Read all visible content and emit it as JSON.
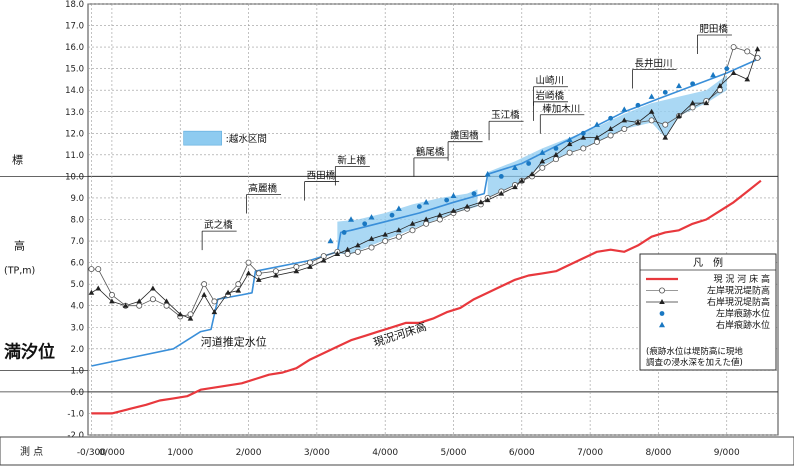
{
  "chart_data": {
    "type": "line",
    "ylim": [
      -2.0,
      18.0
    ],
    "yticks": [
      "18.0",
      "17.0",
      "16.0",
      "15.0",
      "14.0",
      "13.0",
      "12.0",
      "11.0",
      "10.0",
      "9.0",
      "8.0",
      "7.0",
      "6.0",
      "5.0",
      "4.0",
      "3.0",
      "2.0",
      "1.0",
      "0.0",
      "-1.0",
      "-2.0"
    ],
    "ylabel_parts": [
      "標",
      "高",
      "(TP,m)"
    ],
    "mean_tide_label": "満汐位",
    "mean_tide_level": 1.0,
    "xlim": [
      -0.35,
      9.75
    ],
    "xticks": [
      {
        "x": -0.3,
        "label": "-0/300"
      },
      {
        "x": 0.0,
        "label": "0/000"
      },
      {
        "x": 1.0,
        "label": "1/000"
      },
      {
        "x": 2.0,
        "label": "2/000"
      },
      {
        "x": 3.0,
        "label": "3/000"
      },
      {
        "x": 4.0,
        "label": "4/000"
      },
      {
        "x": 5.0,
        "label": "5/000"
      },
      {
        "x": 6.0,
        "label": "6/000"
      },
      {
        "x": 7.0,
        "label": "7/000"
      },
      {
        "x": 8.0,
        "label": "8/000"
      },
      {
        "x": 9.0,
        "label": "9/000"
      }
    ],
    "xaxis_title": "測 点",
    "bridges": [
      {
        "name": "武之橋",
        "x": 1.35,
        "y": 7.6
      },
      {
        "name": "高麗橋",
        "x": 2.0,
        "y": 9.3
      },
      {
        "name": "西田橋",
        "x": 2.85,
        "y": 9.9
      },
      {
        "name": "新上橋",
        "x": 3.3,
        "y": 10.6
      },
      {
        "name": "鶴尾橋",
        "x": 4.45,
        "y": 11.0
      },
      {
        "name": "護国橋",
        "x": 4.95,
        "y": 11.75
      },
      {
        "name": "玉江橋",
        "x": 5.55,
        "y": 12.7
      },
      {
        "name": "山崎川",
        "x": 6.2,
        "y": 14.3
      },
      {
        "name": "岩崎橋",
        "x": 6.2,
        "y": 13.6
      },
      {
        "name": "棒加木川",
        "x": 6.3,
        "y": 13.0
      },
      {
        "name": "長井田川",
        "x": 7.65,
        "y": 15.1
      },
      {
        "name": "肥田橋",
        "x": 8.6,
        "y": 16.7
      }
    ],
    "annotations": [
      {
        "text": "河道推定水位",
        "x": 1.3,
        "y": 2.15
      },
      {
        "text": "現況河床高",
        "x": 3.85,
        "y": 2.1
      }
    ],
    "overflow_label": "越水区間",
    "legend": {
      "title": "凡　例",
      "items": [
        {
          "label": "現 況 河 床 高",
          "marker": "line",
          "color": "#e8383d"
        },
        {
          "label": "左岸現況堤防高",
          "marker": "open-circle",
          "color": "#666666"
        },
        {
          "label": "右岸現況堤防高",
          "marker": "filled-triangle",
          "color": "#222222"
        },
        {
          "label": "左岸痕跡水位",
          "marker": "blue-dot",
          "color": "#1a78c2"
        },
        {
          "label": "右岸痕跡水位",
          "marker": "blue-triangle",
          "color": "#1a78c2"
        }
      ],
      "note": [
        "(痕跡水位は堤防高に現地",
        "調査の浸水深を加えた値)"
      ]
    },
    "series": [
      {
        "name": "現況河床高",
        "color": "#e8383d",
        "x": [
          -0.3,
          0.0,
          0.25,
          0.5,
          0.7,
          0.9,
          1.1,
          1.3,
          1.5,
          1.7,
          1.9,
          2.1,
          2.3,
          2.5,
          2.7,
          2.9,
          3.1,
          3.3,
          3.5,
          3.7,
          3.9,
          4.1,
          4.3,
          4.5,
          4.7,
          4.9,
          5.1,
          5.3,
          5.5,
          5.7,
          5.9,
          6.1,
          6.3,
          6.5,
          6.7,
          6.9,
          7.1,
          7.3,
          7.5,
          7.7,
          7.9,
          8.1,
          8.3,
          8.5,
          8.7,
          8.9,
          9.1,
          9.3,
          9.5
        ],
        "values": [
          -1.0,
          -1.0,
          -0.8,
          -0.6,
          -0.4,
          -0.3,
          -0.2,
          0.1,
          0.2,
          0.3,
          0.4,
          0.6,
          0.8,
          0.9,
          1.1,
          1.5,
          1.8,
          2.1,
          2.4,
          2.6,
          2.8,
          3.0,
          3.2,
          3.2,
          3.4,
          3.7,
          3.9,
          4.3,
          4.6,
          4.9,
          5.2,
          5.4,
          5.5,
          5.6,
          5.9,
          6.2,
          6.5,
          6.6,
          6.5,
          6.8,
          7.2,
          7.4,
          7.5,
          7.8,
          8.0,
          8.4,
          8.8,
          9.3,
          9.8
        ]
      },
      {
        "name": "河道推定水位",
        "color": "#3a8fd9",
        "x": [
          -0.3,
          0.3,
          0.9,
          1.3,
          1.45,
          1.55,
          1.9,
          2.05,
          2.1,
          2.9,
          3.3,
          3.35,
          3.5,
          4.0,
          4.5,
          5.0,
          5.45,
          5.5,
          6.0,
          6.5,
          7.0,
          7.5,
          8.0,
          8.5,
          9.0,
          9.5
        ],
        "values": [
          1.2,
          1.6,
          2.0,
          2.8,
          2.9,
          4.3,
          4.5,
          4.6,
          5.6,
          6.1,
          6.5,
          7.4,
          7.5,
          7.9,
          8.3,
          8.8,
          9.2,
          10.1,
          10.6,
          11.4,
          12.2,
          13.0,
          13.6,
          14.2,
          14.8,
          15.5
        ]
      },
      {
        "name": "左岸現況堤防高",
        "color": "#555555",
        "x": [
          -0.3,
          -0.2,
          0.0,
          0.2,
          0.4,
          0.6,
          0.8,
          1.0,
          1.15,
          1.35,
          1.5,
          1.7,
          1.85,
          2.0,
          2.15,
          2.4,
          2.7,
          2.9,
          3.1,
          3.3,
          3.45,
          3.6,
          3.8,
          4.0,
          4.2,
          4.4,
          4.6,
          4.8,
          5.0,
          5.2,
          5.4,
          5.5,
          5.7,
          5.9,
          6.0,
          6.15,
          6.3,
          6.5,
          6.7,
          6.9,
          7.1,
          7.3,
          7.5,
          7.7,
          7.9,
          8.1,
          8.3,
          8.5,
          8.7,
          8.9,
          9.1,
          9.3,
          9.45
        ],
        "values": [
          5.7,
          5.7,
          4.5,
          4.0,
          4.0,
          4.3,
          4.0,
          3.5,
          3.6,
          5.0,
          4.2,
          4.5,
          5.0,
          6.0,
          5.5,
          5.6,
          5.8,
          6.0,
          6.3,
          6.5,
          6.4,
          6.5,
          6.7,
          7.0,
          7.2,
          7.5,
          7.8,
          8.0,
          8.3,
          8.5,
          8.7,
          9.0,
          9.3,
          9.6,
          9.8,
          10.0,
          10.4,
          10.8,
          11.1,
          11.3,
          11.6,
          11.9,
          12.2,
          12.5,
          12.6,
          12.4,
          12.8,
          13.2,
          13.5,
          14.0,
          16.0,
          15.8,
          15.5
        ]
      },
      {
        "name": "右岸現況堤防高",
        "color": "#222222",
        "x": [
          -0.3,
          -0.2,
          0.0,
          0.2,
          0.4,
          0.6,
          0.8,
          1.0,
          1.15,
          1.35,
          1.5,
          1.7,
          1.85,
          2.0,
          2.15,
          2.4,
          2.7,
          2.9,
          3.1,
          3.3,
          3.45,
          3.6,
          3.8,
          4.0,
          4.2,
          4.4,
          4.6,
          4.8,
          5.0,
          5.2,
          5.4,
          5.5,
          5.7,
          5.9,
          6.0,
          6.15,
          6.3,
          6.5,
          6.7,
          6.9,
          7.1,
          7.3,
          7.5,
          7.7,
          7.9,
          8.1,
          8.3,
          8.5,
          8.7,
          8.9,
          9.1,
          9.3,
          9.45
        ],
        "values": [
          4.6,
          4.8,
          4.2,
          4.0,
          4.2,
          4.8,
          4.2,
          3.6,
          3.4,
          4.5,
          3.7,
          4.6,
          4.7,
          5.5,
          5.2,
          5.4,
          5.6,
          5.8,
          6.1,
          6.4,
          6.6,
          6.8,
          7.1,
          7.3,
          7.5,
          7.8,
          8.0,
          8.2,
          8.4,
          8.6,
          8.8,
          8.9,
          9.2,
          9.5,
          9.8,
          10.1,
          10.7,
          11.0,
          11.5,
          11.8,
          11.8,
          12.2,
          12.6,
          12.5,
          13.0,
          11.8,
          12.8,
          13.4,
          13.4,
          14.2,
          14.8,
          14.5,
          15.9
        ]
      },
      {
        "name": "左岸痕跡水位",
        "color": "#1a78c2",
        "x": [
          3.4,
          3.7,
          4.1,
          4.5,
          4.9,
          5.3,
          5.7,
          6.1,
          6.5,
          6.9,
          7.3,
          7.7,
          8.1,
          8.5,
          9.0
        ],
        "values": [
          7.4,
          7.8,
          8.2,
          8.6,
          8.9,
          9.2,
          10.0,
          10.6,
          11.3,
          12.0,
          12.7,
          13.3,
          13.9,
          14.3,
          15.0
        ]
      },
      {
        "name": "右岸痕跡水位",
        "color": "#1a78c2",
        "x": [
          3.2,
          3.5,
          3.8,
          4.2,
          4.6,
          5.0,
          5.5,
          5.9,
          6.3,
          6.7,
          7.1,
          7.5,
          7.9,
          8.3,
          8.8
        ],
        "values": [
          7.0,
          8.0,
          8.1,
          8.5,
          8.8,
          9.1,
          10.1,
          10.4,
          11.1,
          11.7,
          12.4,
          13.1,
          13.7,
          14.2,
          14.7
        ]
      }
    ],
    "overflow_polygons": [
      {
        "upper": [
          [
            3.3,
            7.9
          ],
          [
            3.6,
            8.0
          ],
          [
            4.0,
            8.3
          ],
          [
            4.4,
            8.7
          ],
          [
            4.8,
            9.0
          ],
          [
            5.2,
            9.2
          ],
          [
            5.35,
            9.4
          ]
        ],
        "lower": [
          [
            5.35,
            8.6
          ],
          [
            5.0,
            8.3
          ],
          [
            4.6,
            7.8
          ],
          [
            4.2,
            7.3
          ],
          [
            3.8,
            6.8
          ],
          [
            3.5,
            6.4
          ],
          [
            3.3,
            6.4
          ]
        ]
      },
      {
        "upper": [
          [
            5.5,
            10.2
          ],
          [
            5.9,
            10.7
          ],
          [
            6.3,
            11.3
          ],
          [
            6.7,
            11.8
          ],
          [
            7.1,
            12.3
          ],
          [
            7.5,
            12.9
          ],
          [
            7.9,
            13.4
          ],
          [
            8.3,
            13.7
          ],
          [
            8.7,
            14.0
          ],
          [
            9.0,
            14.7
          ]
        ],
        "lower": [
          [
            9.0,
            14.0
          ],
          [
            8.7,
            13.4
          ],
          [
            8.3,
            12.8
          ],
          [
            8.1,
            11.8
          ],
          [
            7.9,
            12.5
          ],
          [
            7.5,
            12.2
          ],
          [
            7.1,
            11.6
          ],
          [
            6.7,
            11.1
          ],
          [
            6.3,
            10.5
          ],
          [
            5.9,
            9.6
          ],
          [
            5.5,
            9.0
          ]
        ]
      }
    ]
  }
}
